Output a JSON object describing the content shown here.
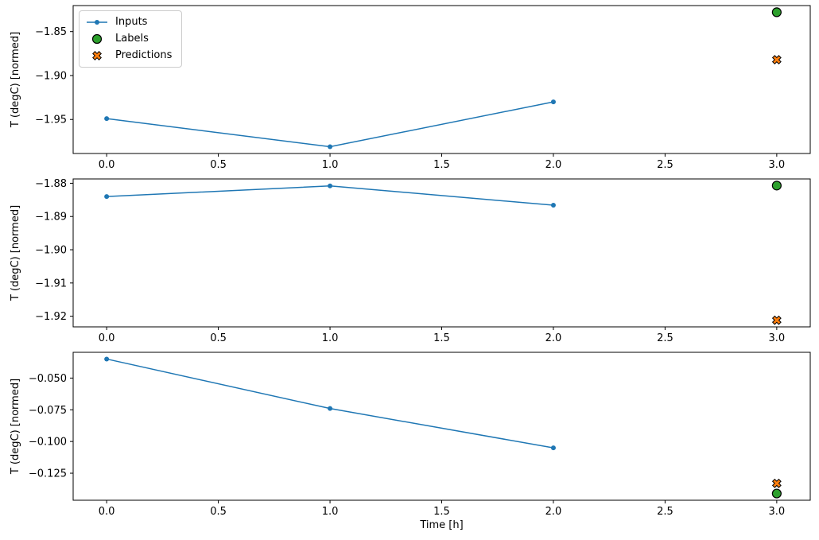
{
  "colors": {
    "inputs": "#1f77b4",
    "labels": "#2ca02c",
    "predictions": "#ff7f0e",
    "edge": "#000000"
  },
  "legend": {
    "position": "upper left",
    "items": [
      {
        "label": "Inputs",
        "series": "inputs"
      },
      {
        "label": "Labels",
        "series": "labels"
      },
      {
        "label": "Predictions",
        "series": "predictions"
      }
    ]
  },
  "chart_data": [
    {
      "type": "line",
      "ylabel": "T (degC) [normed]",
      "xlabel": "",
      "grid": false,
      "xlim": [
        -0.15,
        3.15
      ],
      "ylim": [
        -1.9887,
        -1.8204
      ],
      "xticks": [
        {
          "v": 0.0,
          "label": "0.0"
        },
        {
          "v": 0.5,
          "label": "0.5"
        },
        {
          "v": 1.0,
          "label": "1.0"
        },
        {
          "v": 1.5,
          "label": "1.5"
        },
        {
          "v": 2.0,
          "label": "2.0"
        },
        {
          "v": 2.5,
          "label": "2.5"
        },
        {
          "v": 3.0,
          "label": "3.0"
        }
      ],
      "yticks": [
        {
          "v": -1.85,
          "label": "−1.85"
        },
        {
          "v": -1.9,
          "label": "−1.90"
        },
        {
          "v": -1.95,
          "label": "−1.95"
        }
      ],
      "series": {
        "inputs": {
          "x": [
            0,
            1,
            2
          ],
          "y": [
            -1.949,
            -1.981,
            -1.93
          ]
        },
        "labels": {
          "x": [
            3
          ],
          "y": [
            -1.828
          ]
        },
        "predictions": {
          "x": [
            3
          ],
          "y": [
            -1.882
          ]
        }
      }
    },
    {
      "type": "line",
      "ylabel": "T (degC) [normed]",
      "xlabel": "",
      "grid": false,
      "xlim": [
        -0.15,
        3.15
      ],
      "ylim": [
        -1.9232,
        -1.8787
      ],
      "xticks": [
        {
          "v": 0.0,
          "label": "0.0"
        },
        {
          "v": 0.5,
          "label": "0.5"
        },
        {
          "v": 1.0,
          "label": "1.0"
        },
        {
          "v": 1.5,
          "label": "1.5"
        },
        {
          "v": 2.0,
          "label": "2.0"
        },
        {
          "v": 2.5,
          "label": "2.5"
        },
        {
          "v": 3.0,
          "label": "3.0"
        }
      ],
      "yticks": [
        {
          "v": -1.88,
          "label": "−1.88"
        },
        {
          "v": -1.89,
          "label": "−1.89"
        },
        {
          "v": -1.9,
          "label": "−1.90"
        },
        {
          "v": -1.91,
          "label": "−1.91"
        },
        {
          "v": -1.92,
          "label": "−1.92"
        }
      ],
      "series": {
        "inputs": {
          "x": [
            0,
            1,
            2
          ],
          "y": [
            -1.884,
            -1.8808,
            -1.8866
          ]
        },
        "labels": {
          "x": [
            3
          ],
          "y": [
            -1.8807
          ]
        },
        "predictions": {
          "x": [
            3
          ],
          "y": [
            -1.9212
          ]
        }
      }
    },
    {
      "type": "line",
      "ylabel": "T (degC) [normed]",
      "xlabel": "Time [h]",
      "grid": false,
      "xlim": [
        -0.15,
        3.15
      ],
      "ylim": [
        -0.1463,
        -0.0297
      ],
      "xticks": [
        {
          "v": 0.0,
          "label": "0.0"
        },
        {
          "v": 0.5,
          "label": "0.5"
        },
        {
          "v": 1.0,
          "label": "1.0"
        },
        {
          "v": 1.5,
          "label": "1.5"
        },
        {
          "v": 2.0,
          "label": "2.0"
        },
        {
          "v": 2.5,
          "label": "2.5"
        },
        {
          "v": 3.0,
          "label": "3.0"
        }
      ],
      "yticks": [
        {
          "v": -0.05,
          "label": "−0.050"
        },
        {
          "v": -0.075,
          "label": "−0.075"
        },
        {
          "v": -0.1,
          "label": "−0.100"
        },
        {
          "v": -0.125,
          "label": "−0.125"
        }
      ],
      "series": {
        "inputs": {
          "x": [
            0,
            1,
            2
          ],
          "y": [
            -0.035,
            -0.074,
            -0.105
          ]
        },
        "labels": {
          "x": [
            3
          ],
          "y": [
            -0.141
          ]
        },
        "predictions": {
          "x": [
            3
          ],
          "y": [
            -0.133
          ]
        }
      }
    }
  ]
}
